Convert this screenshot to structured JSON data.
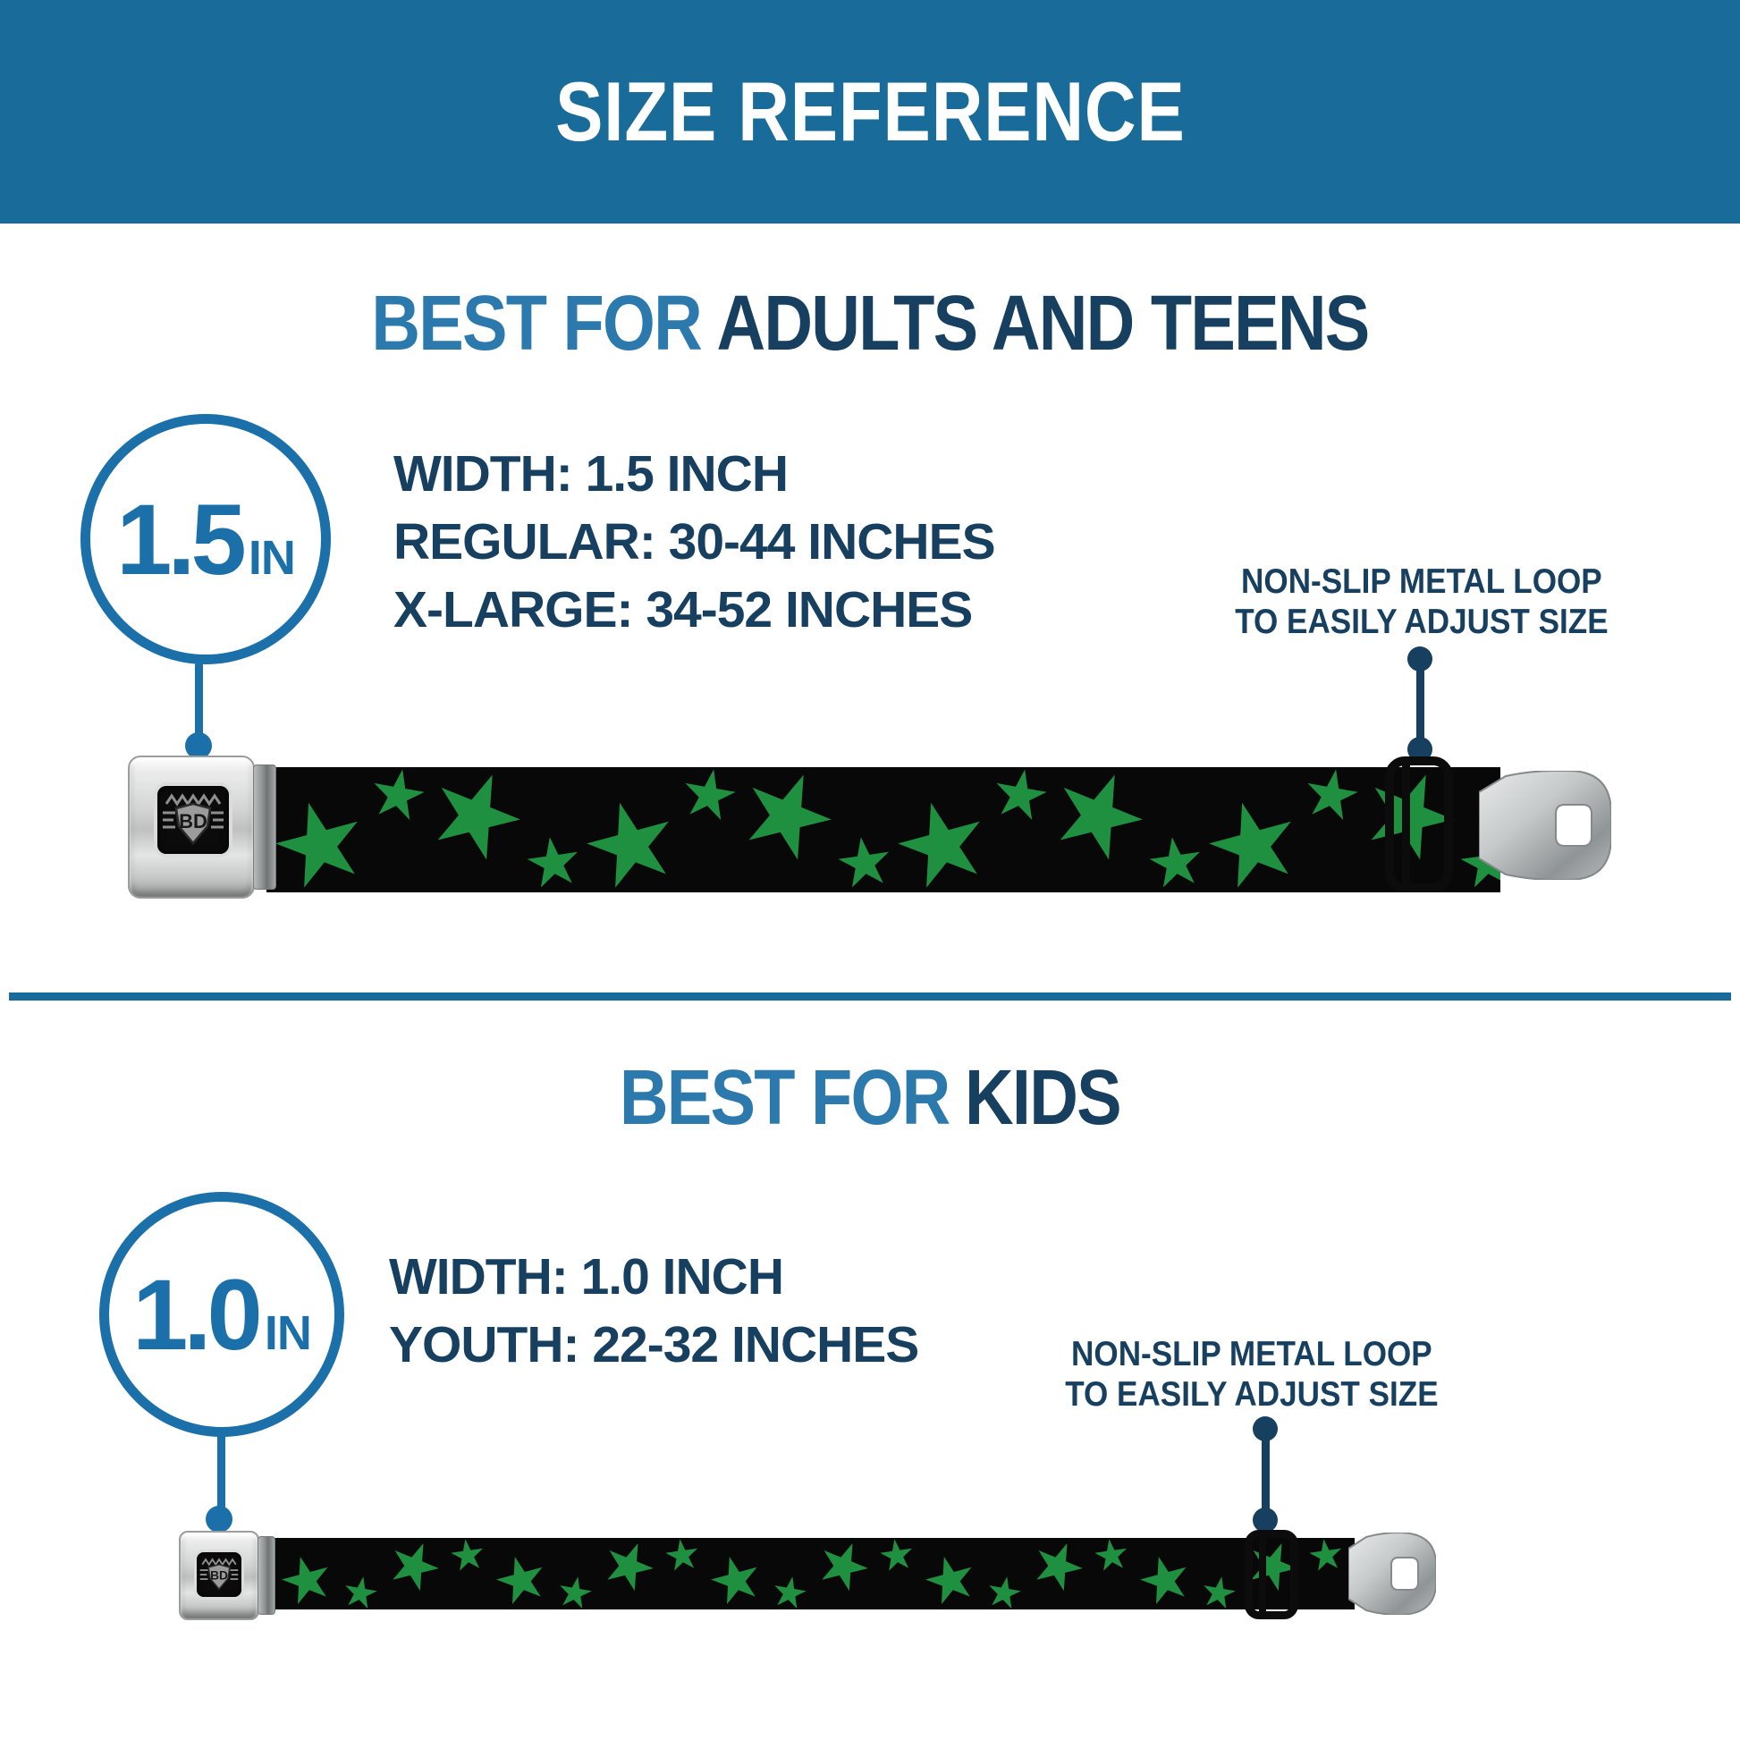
{
  "colors": {
    "banner_bg": "#196B99",
    "heading_light": "#2B79AD",
    "heading_dark": "#173F5F",
    "callout_navy": "#173F5F",
    "circle_blue": "#1C70AA",
    "star_green": "#1F9040",
    "strap_black": "#080808",
    "text_white": "#FFFFFF"
  },
  "banner": {
    "title": "SIZE REFERENCE"
  },
  "sections": [
    {
      "heading": {
        "light": "BEST FOR",
        "dark": "ADULTS AND TEENS"
      },
      "size_circle": {
        "value": "1.5",
        "unit": "IN"
      },
      "specs": [
        "WIDTH: 1.5 INCH",
        "REGULAR: 30-44 INCHES",
        "X-LARGE: 34-52 INCHES"
      ],
      "callout": {
        "line1": "NON-SLIP METAL LOOP",
        "line2": "TO EASILY ADJUST SIZE"
      }
    },
    {
      "heading": {
        "light": "BEST FOR",
        "dark": "KIDS"
      },
      "size_circle": {
        "value": "1.0",
        "unit": "IN"
      },
      "specs": [
        "WIDTH: 1.0 INCH",
        "YOUTH: 22-32 INCHES"
      ],
      "callout": {
        "line1": "NON-SLIP METAL LOOP",
        "line2": "TO EASILY ADJUST SIZE"
      }
    }
  ],
  "buckle": {
    "logo": "BD"
  }
}
